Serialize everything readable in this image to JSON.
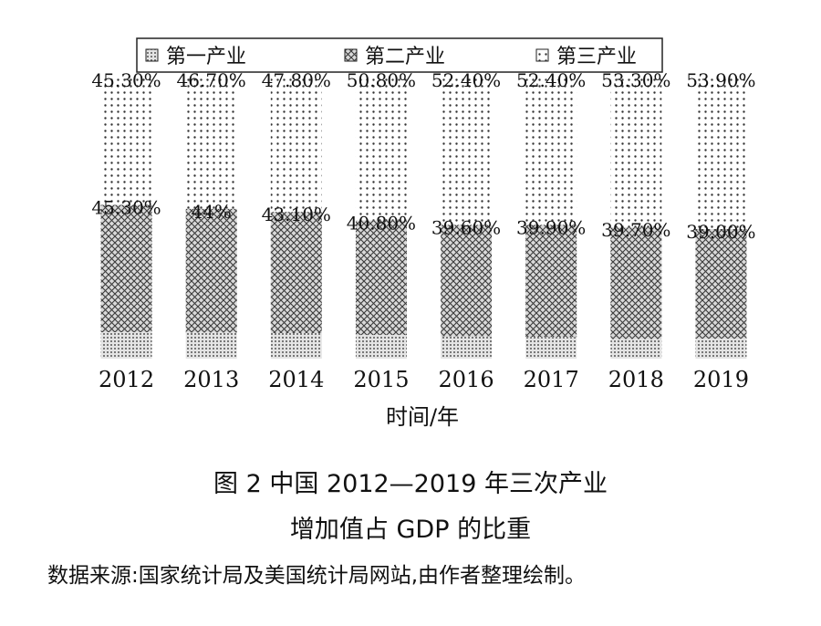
{
  "figure": {
    "title": "图 2    中国 2012—2019 年三次产业",
    "subtitle": "增加值占 GDP 的比重",
    "source": "数据来源:国家统计局及美国统计局网站,由作者整理绘制。"
  },
  "chart_data": {
    "type": "bar",
    "stacked": true,
    "categories": [
      "2012",
      "2013",
      "2014",
      "2015",
      "2016",
      "2017",
      "2018",
      "2019"
    ],
    "xlabel": "时间/年",
    "ylim": [
      0,
      100
    ],
    "grid": false,
    "legend_position": "top",
    "series": [
      {
        "name": "第一产业",
        "pattern": "dense-dots",
        "values": [
          9.4,
          9.3,
          9.1,
          8.4,
          8.0,
          7.7,
          7.0,
          7.1
        ]
      },
      {
        "name": "第二产业",
        "pattern": "crosshatch",
        "values": [
          45.3,
          44.0,
          43.1,
          40.8,
          39.6,
          39.9,
          39.7,
          39.0
        ],
        "labels": [
          "45.30%",
          "44%",
          "43.10%",
          "40.80%",
          "39.60%",
          "39.90%",
          "39.70%",
          "39.00%"
        ]
      },
      {
        "name": "第三产业",
        "pattern": "sparse-dots",
        "values": [
          45.3,
          46.7,
          47.8,
          50.8,
          52.4,
          52.4,
          53.3,
          53.9
        ],
        "labels": [
          "45.30%",
          "46.70%",
          "47.80%",
          "50.80%",
          "52.40%",
          "52.40%",
          "53.30%",
          "53.90%"
        ]
      }
    ]
  }
}
